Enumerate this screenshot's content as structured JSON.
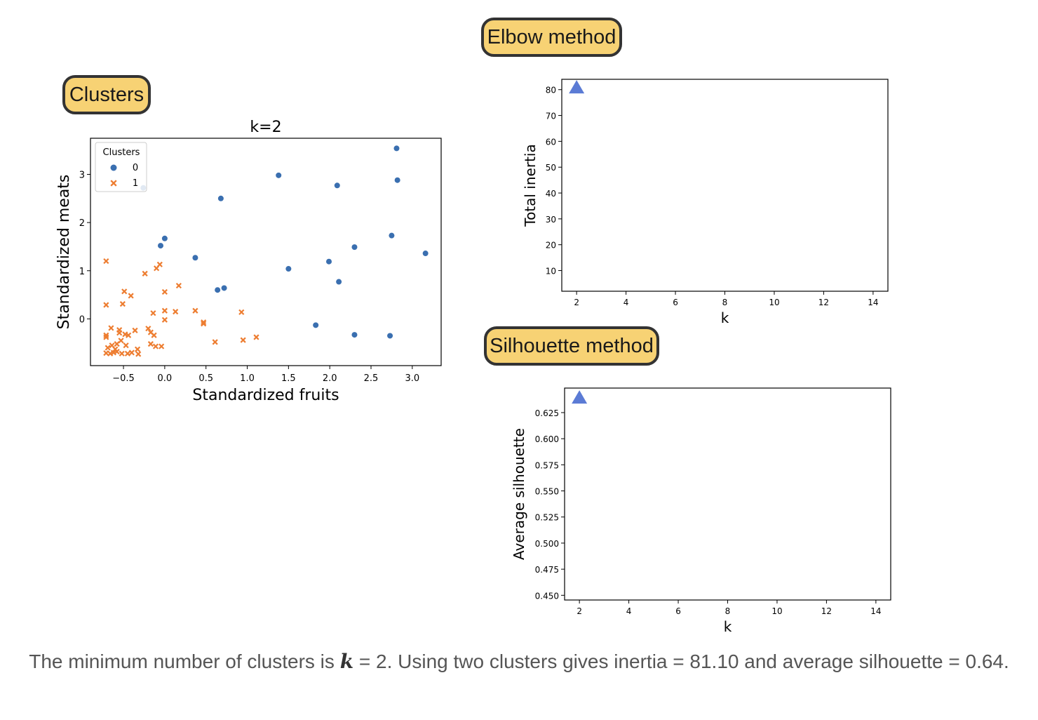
{
  "badges": {
    "clusters": "Clusters",
    "elbow": "Elbow method",
    "silhouette": "Silhouette method"
  },
  "caption": {
    "prefix": "The minimum number of clusters is ",
    "k_symbol": "k",
    "suffix": " = 2. Using two clusters gives inertia = 81.10 and average silhouette = 0.64."
  },
  "colors": {
    "cluster0": "#3a6fb0",
    "cluster1": "#ed7d31",
    "marker": "#5b7bd5",
    "badge_fill": "#f7d274",
    "badge_border": "#333333"
  },
  "chart_data": [
    {
      "type": "scatter",
      "title": "k=2",
      "xlabel": "Standardized fruits",
      "ylabel": "Standardized meats",
      "xlim": [
        -0.9,
        3.35
      ],
      "ylim": [
        -0.97,
        3.75
      ],
      "xticks": [
        "−0.5",
        "0.0",
        "0.5",
        "1.0",
        "1.5",
        "2.0",
        "2.5",
        "3.0"
      ],
      "xtick_values": [
        -0.5,
        0.0,
        0.5,
        1.0,
        1.5,
        2.0,
        2.5,
        3.0
      ],
      "yticks": [
        "0",
        "1",
        "2",
        "3"
      ],
      "ytick_values": [
        0,
        1,
        2,
        3
      ],
      "legend": {
        "title": "Clusters",
        "placement": "top-left",
        "entries": [
          "0",
          "1"
        ]
      },
      "series": [
        {
          "name": "0",
          "marker": "circle",
          "points": [
            [
              2.81,
              3.54
            ],
            [
              1.38,
              2.98
            ],
            [
              2.09,
              2.77
            ],
            [
              2.82,
              2.88
            ],
            [
              0.68,
              2.5
            ],
            [
              -0.26,
              2.72
            ],
            [
              0.0,
              1.67
            ],
            [
              -0.05,
              1.52
            ],
            [
              0.37,
              1.27
            ],
            [
              2.75,
              1.73
            ],
            [
              2.3,
              1.49
            ],
            [
              3.16,
              1.36
            ],
            [
              1.5,
              1.04
            ],
            [
              1.99,
              1.19
            ],
            [
              2.11,
              0.77
            ],
            [
              0.64,
              0.6
            ],
            [
              0.72,
              0.64
            ],
            [
              1.83,
              -0.13
            ],
            [
              2.3,
              -0.33
            ],
            [
              2.73,
              -0.35
            ]
          ]
        },
        {
          "name": "1",
          "marker": "x",
          "points": [
            [
              -0.71,
              1.2
            ],
            [
              -0.06,
              1.13
            ],
            [
              -0.1,
              1.05
            ],
            [
              -0.24,
              0.94
            ],
            [
              0.17,
              0.69
            ],
            [
              -0.49,
              0.57
            ],
            [
              -0.41,
              0.48
            ],
            [
              0.0,
              0.56
            ],
            [
              -0.71,
              0.29
            ],
            [
              -0.51,
              0.31
            ],
            [
              -0.14,
              0.12
            ],
            [
              0.0,
              0.17
            ],
            [
              0.13,
              0.15
            ],
            [
              0.37,
              0.17
            ],
            [
              0.93,
              0.14
            ],
            [
              0.0,
              -0.02
            ],
            [
              0.47,
              -0.07
            ],
            [
              0.47,
              -0.1
            ],
            [
              -0.65,
              -0.19
            ],
            [
              -0.55,
              -0.23
            ],
            [
              -0.36,
              -0.24
            ],
            [
              -0.2,
              -0.2
            ],
            [
              -0.17,
              -0.28
            ],
            [
              -0.13,
              -0.34
            ],
            [
              -0.71,
              -0.34
            ],
            [
              -0.55,
              -0.29
            ],
            [
              -0.48,
              -0.32
            ],
            [
              -0.44,
              -0.34
            ],
            [
              -0.71,
              -0.38
            ],
            [
              0.61,
              -0.48
            ],
            [
              0.95,
              -0.44
            ],
            [
              1.11,
              -0.38
            ],
            [
              -0.69,
              -0.6
            ],
            [
              -0.64,
              -0.55
            ],
            [
              -0.58,
              -0.52
            ],
            [
              -0.53,
              -0.45
            ],
            [
              -0.47,
              -0.55
            ],
            [
              -0.4,
              -0.7
            ],
            [
              -0.33,
              -0.63
            ],
            [
              -0.17,
              -0.52
            ],
            [
              -0.11,
              -0.57
            ],
            [
              -0.04,
              -0.57
            ],
            [
              -0.71,
              -0.71
            ],
            [
              -0.66,
              -0.72
            ],
            [
              -0.62,
              -0.7
            ],
            [
              -0.58,
              -0.68
            ],
            [
              -0.52,
              -0.72
            ],
            [
              -0.45,
              -0.72
            ],
            [
              -0.32,
              -0.73
            ],
            [
              -0.6,
              -0.63
            ]
          ]
        }
      ]
    },
    {
      "type": "line",
      "title": "",
      "xlabel": "k",
      "ylabel": "Total inertia",
      "xlim": [
        1.4,
        14.6
      ],
      "ylim": [
        2.0,
        84.0
      ],
      "xticks": [
        "2",
        "4",
        "6",
        "8",
        "10",
        "12",
        "14"
      ],
      "xtick_values": [
        2,
        4,
        6,
        8,
        10,
        12,
        14
      ],
      "yticks": [
        "10",
        "20",
        "30",
        "40",
        "50",
        "60",
        "70",
        "80"
      ],
      "ytick_values": [
        10,
        20,
        30,
        40,
        50,
        60,
        70,
        80
      ],
      "series": [
        {
          "marker": "triangle",
          "x": [
            2
          ],
          "y": [
            81.1
          ]
        }
      ]
    },
    {
      "type": "line",
      "title": "",
      "xlabel": "k",
      "ylabel": "Average silhouette",
      "xlim": [
        1.4,
        14.6
      ],
      "ylim": [
        0.4455,
        0.6485
      ],
      "xticks": [
        "2",
        "4",
        "6",
        "8",
        "10",
        "12",
        "14"
      ],
      "xtick_values": [
        2,
        4,
        6,
        8,
        10,
        12,
        14
      ],
      "yticks": [
        "0.450",
        "0.475",
        "0.500",
        "0.525",
        "0.550",
        "0.575",
        "0.600",
        "0.625"
      ],
      "ytick_values": [
        0.45,
        0.475,
        0.5,
        0.525,
        0.55,
        0.575,
        0.6,
        0.625
      ],
      "series": [
        {
          "marker": "triangle",
          "x": [
            2
          ],
          "y": [
            0.64
          ]
        }
      ]
    }
  ]
}
